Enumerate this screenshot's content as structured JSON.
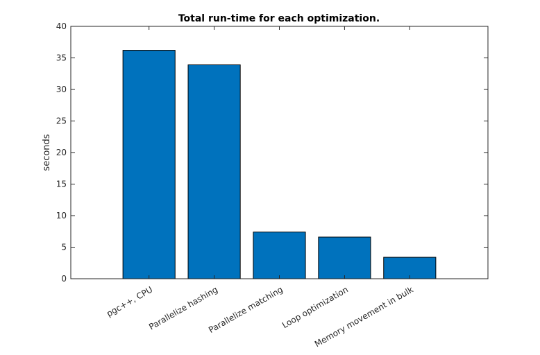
{
  "chart_data": {
    "type": "bar",
    "title": "Total run-time for each optimization.",
    "xlabel": "",
    "ylabel": "seconds",
    "ylim": [
      0,
      40
    ],
    "yticks": [
      0,
      5,
      10,
      15,
      20,
      25,
      30,
      35,
      40
    ],
    "categories": [
      "pgc++, CPU",
      "Parallelize hashing",
      "Parallelize matching",
      "Loop optimization",
      "Memory movement in bulk"
    ],
    "values": [
      36.2,
      33.9,
      7.4,
      6.6,
      3.4
    ],
    "bar_color": "#0072bd",
    "grid": false,
    "legend": "none"
  }
}
